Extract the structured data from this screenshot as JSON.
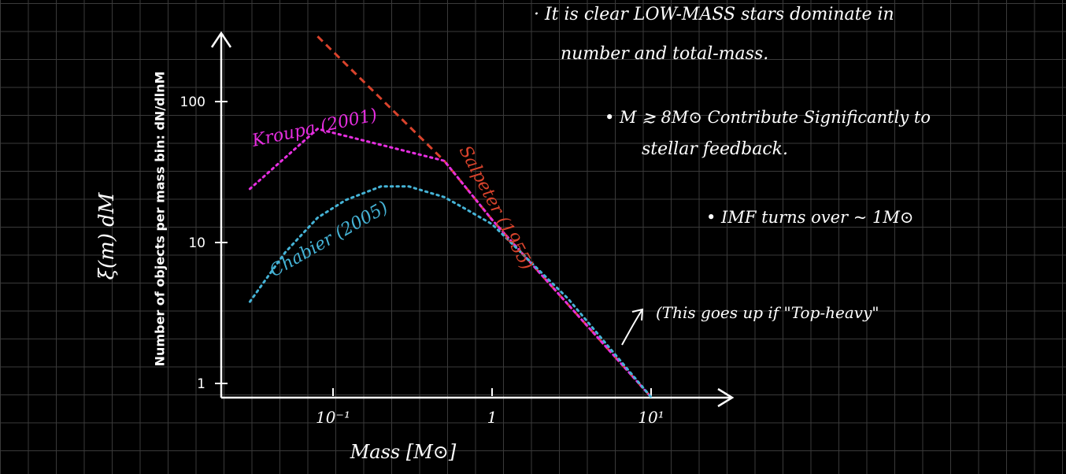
{
  "notes": {
    "n1_line1": "· It is clear LOW-MASS stars dominate in",
    "n1_line2": "number and total-mass.",
    "n2_line1": "• M ≳ 8M⊙ Contribute Significantly to",
    "n2_line2": "stellar feedback.",
    "n3": "• IMF turns over ~ 1M⊙",
    "arrow_note": "(This goes up if \"Top-heavy\""
  },
  "colors": {
    "background": "#000000",
    "grid": "#3a3a3a",
    "axes": "#ffffff",
    "kroupa": "#e62ee0",
    "chabrier": "#45b3d6",
    "salpeter": "#d9432c"
  },
  "chart_data": {
    "type": "line",
    "title": "",
    "xlabel": "Mass [M⊙]",
    "ylabel": "Number of objects per mass bin: dN/dlnM",
    "ylabel_alt": "ξ(m) dM",
    "xscale": "log",
    "yscale": "log",
    "xlim": [
      0.03,
      25
    ],
    "ylim": [
      0.85,
      350
    ],
    "xticks": [
      {
        "value": 0.1,
        "label": "10⁻¹"
      },
      {
        "value": 1,
        "label": "1"
      },
      {
        "value": 10,
        "label": "10¹"
      }
    ],
    "yticks": [
      {
        "value": 1,
        "label": "1"
      },
      {
        "value": 10,
        "label": "10"
      },
      {
        "value": 100,
        "label": "100"
      }
    ],
    "grid": true,
    "series": [
      {
        "name": "Salpeter (1955)",
        "color": "#d9432c",
        "style": "dashed",
        "x": [
          0.08,
          0.5,
          1.0,
          10.0
        ],
        "y": [
          290,
          38,
          14.5,
          0.8
        ]
      },
      {
        "name": "Kroupa (2001)",
        "color": "#e62ee0",
        "style": "dotted",
        "x": [
          0.03,
          0.08,
          0.5,
          1.0,
          10.0
        ],
        "y": [
          24,
          64,
          38,
          14.5,
          0.8
        ]
      },
      {
        "name": "Chabier (2005)",
        "color": "#45b3d6",
        "style": "dotted",
        "x": [
          0.03,
          0.05,
          0.08,
          0.12,
          0.2,
          0.3,
          0.5,
          0.7,
          1.0,
          3.0,
          10.0
        ],
        "y": [
          3.8,
          8.5,
          15,
          20,
          25,
          25,
          21,
          17,
          13.5,
          4.0,
          0.8
        ]
      }
    ]
  }
}
